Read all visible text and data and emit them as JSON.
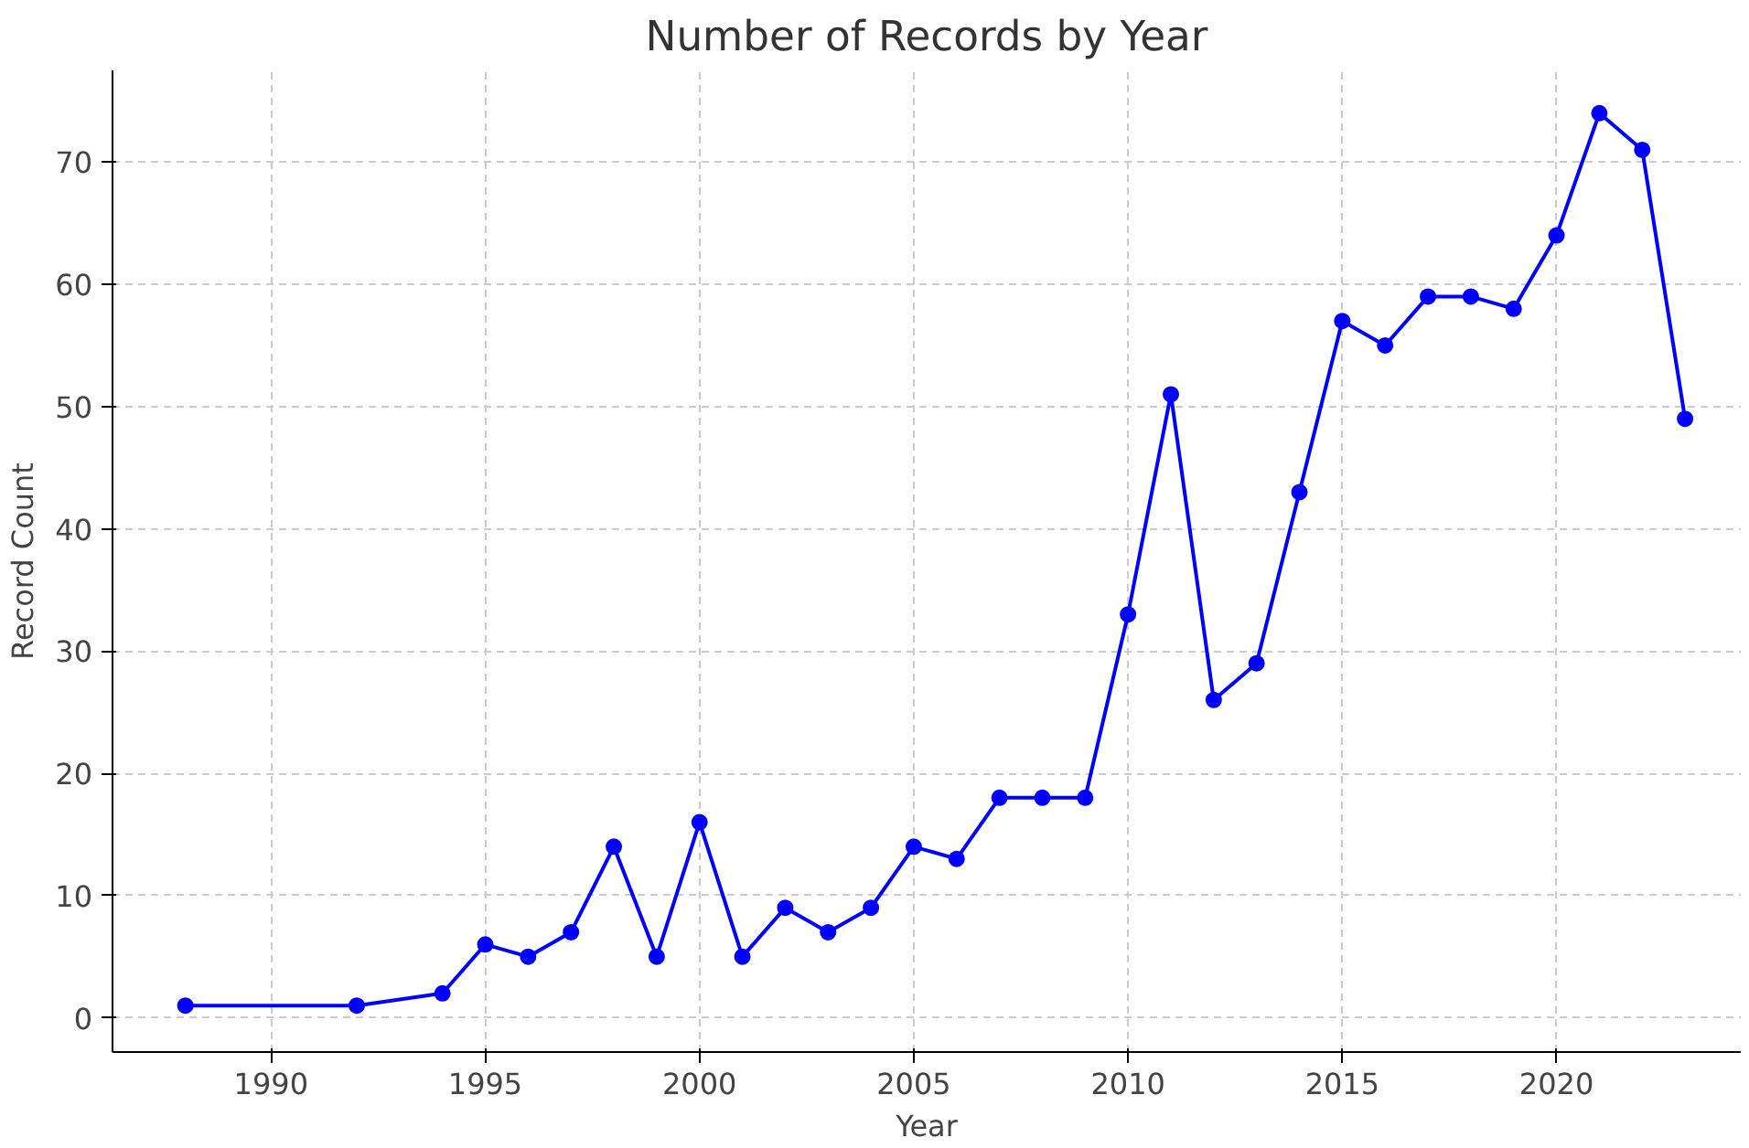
{
  "chart_data": {
    "type": "line",
    "title": "Number of Records by Year",
    "xlabel": "Year",
    "ylabel": "Record Count",
    "x": [
      1988,
      1992,
      1994,
      1995,
      1996,
      1997,
      1998,
      1999,
      2000,
      2001,
      2002,
      2003,
      2004,
      2005,
      2006,
      2007,
      2008,
      2009,
      2010,
      2011,
      2012,
      2013,
      2014,
      2015,
      2016,
      2017,
      2018,
      2019,
      2020,
      2021,
      2022,
      2023
    ],
    "series": [
      {
        "color": "#0000ff",
        "values": [
          1,
          1,
          2,
          6,
          5,
          7,
          14,
          5,
          16,
          5,
          9,
          7,
          9,
          14,
          13,
          18,
          18,
          18,
          33,
          51,
          26,
          29,
          43,
          57,
          55,
          59,
          59,
          58,
          64,
          74,
          71,
          49
        ]
      }
    ],
    "xlim": [
      1986.3,
      2024.3
    ],
    "ylim": [
      -2.8,
      77.5
    ],
    "xticks": [
      1990,
      1995,
      2000,
      2005,
      2010,
      2015,
      2020
    ],
    "yticks": [
      0,
      10,
      20,
      30,
      40,
      50,
      60,
      70
    ],
    "grid": true,
    "marker": "circle",
    "line_style": "solid"
  }
}
